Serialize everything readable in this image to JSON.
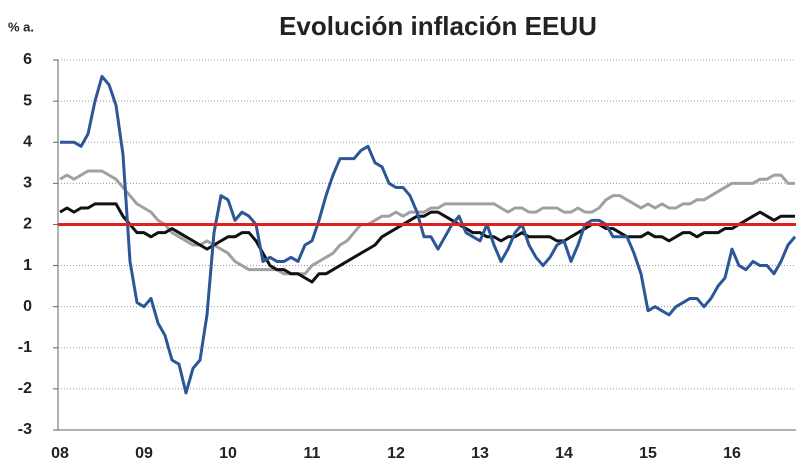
{
  "chart_data": {
    "type": "line",
    "title": "Evolución inflación EEUU",
    "y_label": "% a.",
    "categories": [
      "08",
      null,
      null,
      null,
      null,
      null,
      null,
      null,
      null,
      null,
      null,
      null,
      "09",
      null,
      null,
      null,
      null,
      null,
      null,
      null,
      null,
      null,
      null,
      null,
      "10",
      null,
      null,
      null,
      null,
      null,
      null,
      null,
      null,
      null,
      null,
      null,
      "11",
      null,
      null,
      null,
      null,
      null,
      null,
      null,
      null,
      null,
      null,
      null,
      "12",
      null,
      null,
      null,
      null,
      null,
      null,
      null,
      null,
      null,
      null,
      null,
      "13",
      null,
      null,
      null,
      null,
      null,
      null,
      null,
      null,
      null,
      null,
      null,
      "14",
      null,
      null,
      null,
      null,
      null,
      null,
      null,
      null,
      null,
      null,
      null,
      "15",
      null,
      null,
      null,
      null,
      null,
      null,
      null,
      null,
      null,
      null,
      null,
      "16",
      null,
      null,
      null,
      null,
      null,
      null,
      null,
      null,
      null
    ],
    "series": [
      {
        "color": "#a0a0a0",
        "values": [
          3.1,
          3.2,
          3.1,
          3.2,
          3.3,
          3.3,
          3.3,
          3.2,
          3.1,
          2.9,
          2.7,
          2.5,
          2.4,
          2.3,
          2.1,
          2.0,
          1.8,
          1.7,
          1.6,
          1.5,
          1.5,
          1.6,
          1.5,
          1.4,
          1.3,
          1.1,
          1.0,
          0.9,
          0.9,
          0.9,
          0.9,
          0.9,
          0.8,
          0.8,
          0.8,
          0.8,
          1.0,
          1.1,
          1.2,
          1.3,
          1.5,
          1.6,
          1.8,
          2.0,
          2.0,
          2.1,
          2.2,
          2.2,
          2.3,
          2.2,
          2.3,
          2.3,
          2.3,
          2.4,
          2.4,
          2.5,
          2.5,
          2.5,
          2.5,
          2.5,
          2.5,
          2.5,
          2.5,
          2.4,
          2.3,
          2.4,
          2.4,
          2.3,
          2.3,
          2.4,
          2.4,
          2.4,
          2.3,
          2.3,
          2.4,
          2.3,
          2.3,
          2.4,
          2.6,
          2.7,
          2.7,
          2.6,
          2.5,
          2.4,
          2.5,
          2.4,
          2.5,
          2.4,
          2.4,
          2.5,
          2.5,
          2.6,
          2.6,
          2.7,
          2.8,
          2.9,
          3.0,
          3.0,
          3.0,
          3.0,
          3.1,
          3.1,
          3.2,
          3.2,
          3.0,
          3.0
        ]
      },
      {
        "color": "#111111",
        "values": [
          2.3,
          2.4,
          2.3,
          2.4,
          2.4,
          2.5,
          2.5,
          2.5,
          2.5,
          2.2,
          2.0,
          1.8,
          1.8,
          1.7,
          1.8,
          1.8,
          1.9,
          1.8,
          1.7,
          1.6,
          1.5,
          1.4,
          1.5,
          1.6,
          1.7,
          1.7,
          1.8,
          1.8,
          1.6,
          1.3,
          1.0,
          0.9,
          0.9,
          0.8,
          0.8,
          0.7,
          0.6,
          0.8,
          0.8,
          0.9,
          1.0,
          1.1,
          1.2,
          1.3,
          1.4,
          1.5,
          1.7,
          1.8,
          1.9,
          2.0,
          2.1,
          2.2,
          2.2,
          2.3,
          2.3,
          2.2,
          2.1,
          2.0,
          1.9,
          1.8,
          1.8,
          1.7,
          1.7,
          1.6,
          1.7,
          1.7,
          1.8,
          1.7,
          1.7,
          1.7,
          1.7,
          1.6,
          1.6,
          1.7,
          1.8,
          1.9,
          2.0,
          2.0,
          1.9,
          1.9,
          1.8,
          1.7,
          1.7,
          1.7,
          1.8,
          1.7,
          1.7,
          1.6,
          1.7,
          1.8,
          1.8,
          1.7,
          1.8,
          1.8,
          1.8,
          1.9,
          1.9,
          2.0,
          2.1,
          2.2,
          2.3,
          2.2,
          2.1,
          2.2,
          2.2,
          2.2
        ]
      },
      {
        "color": "#2b5797",
        "values": [
          4.0,
          4.0,
          4.0,
          3.9,
          4.2,
          5.0,
          5.6,
          5.4,
          4.9,
          3.7,
          1.1,
          0.1,
          0.0,
          0.2,
          -0.4,
          -0.7,
          -1.3,
          -1.4,
          -2.1,
          -1.5,
          -1.3,
          -0.2,
          1.8,
          2.7,
          2.6,
          2.1,
          2.3,
          2.2,
          2.0,
          1.1,
          1.2,
          1.1,
          1.1,
          1.2,
          1.1,
          1.5,
          1.6,
          2.1,
          2.7,
          3.2,
          3.6,
          3.6,
          3.6,
          3.8,
          3.9,
          3.5,
          3.4,
          3.0,
          2.9,
          2.9,
          2.7,
          2.3,
          1.7,
          1.7,
          1.4,
          1.7,
          2.0,
          2.2,
          1.8,
          1.7,
          1.6,
          2.0,
          1.5,
          1.1,
          1.4,
          1.8,
          2.0,
          1.5,
          1.2,
          1.0,
          1.2,
          1.5,
          1.6,
          1.1,
          1.5,
          2.0,
          2.1,
          2.1,
          2.0,
          1.7,
          1.7,
          1.7,
          1.3,
          0.8,
          -0.1,
          0.0,
          -0.1,
          -0.2,
          0.0,
          0.1,
          0.2,
          0.2,
          0.0,
          0.2,
          0.5,
          0.7,
          1.4,
          1.0,
          0.9,
          1.1,
          1.0,
          1.0,
          0.8,
          1.1,
          1.5,
          1.7
        ]
      }
    ],
    "reference_line": {
      "value": 2,
      "color": "#e02020"
    },
    "ylim": [
      -3,
      6
    ],
    "yticks": [
      -3,
      -2,
      -1,
      0,
      1,
      2,
      3,
      4,
      5,
      6
    ],
    "grid": true
  }
}
